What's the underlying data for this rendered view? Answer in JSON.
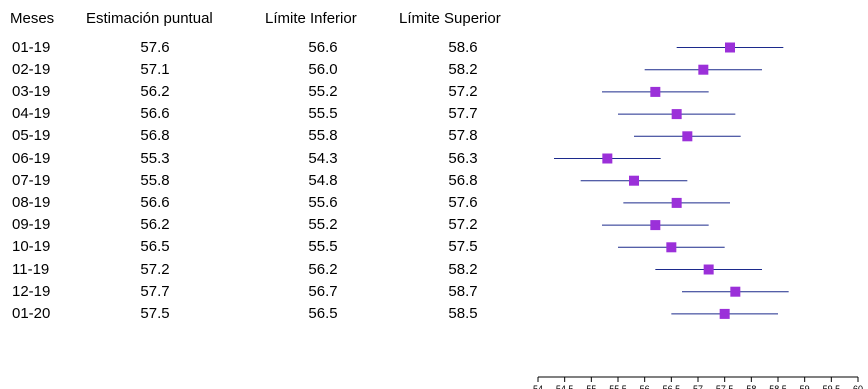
{
  "chart_data": {
    "type": "forest",
    "headers": [
      "Meses",
      "Estimación puntual",
      "Límite Inferior",
      "Límite Superior"
    ],
    "rows": [
      {
        "month": "01-19",
        "estimate": "57.6",
        "lower": "56.6",
        "upper": "58.6"
      },
      {
        "month": "02-19",
        "estimate": "57.1",
        "lower": "56.0",
        "upper": "58.2"
      },
      {
        "month": "03-19",
        "estimate": "56.2",
        "lower": "55.2",
        "upper": "57.2"
      },
      {
        "month": "04-19",
        "estimate": "56.6",
        "lower": "55.5",
        "upper": "57.7"
      },
      {
        "month": "05-19",
        "estimate": "56.8",
        "lower": "55.8",
        "upper": "57.8"
      },
      {
        "month": "06-19",
        "estimate": "55.3",
        "lower": "54.3",
        "upper": "56.3"
      },
      {
        "month": "07-19",
        "estimate": "55.8",
        "lower": "54.8",
        "upper": "56.8"
      },
      {
        "month": "08-19",
        "estimate": "56.6",
        "lower": "55.6",
        "upper": "57.6"
      },
      {
        "month": "09-19",
        "estimate": "56.2",
        "lower": "55.2",
        "upper": "57.2"
      },
      {
        "month": "10-19",
        "estimate": "56.5",
        "lower": "55.5",
        "upper": "57.5"
      },
      {
        "month": "11-19",
        "estimate": "57.2",
        "lower": "56.2",
        "upper": "58.2"
      },
      {
        "month": "12-19",
        "estimate": "57.7",
        "lower": "56.7",
        "upper": "58.7"
      },
      {
        "month": "01-20",
        "estimate": "57.5",
        "lower": "56.5",
        "upper": "58.5"
      }
    ],
    "x_ticks": [
      "54",
      "54.5",
      "55",
      "55.5",
      "56",
      "56.5",
      "57",
      "57.5",
      "58",
      "58.5",
      "59",
      "59.5",
      "60"
    ],
    "xlim": [
      54,
      60
    ],
    "marker_color": "#9b30d9",
    "line_color": "#1c2a8c"
  }
}
